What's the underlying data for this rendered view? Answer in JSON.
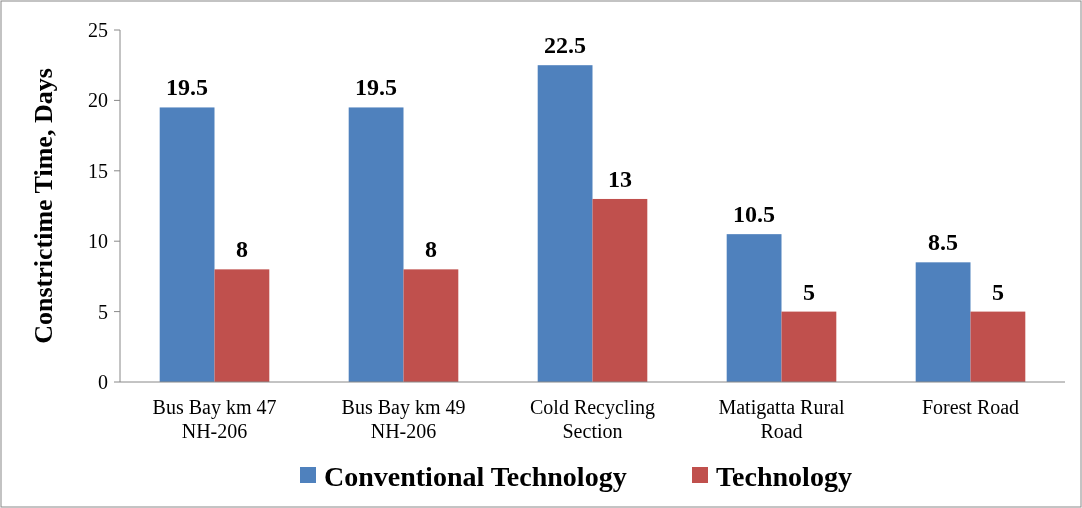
{
  "chart_data": {
    "type": "bar",
    "ylabel": "Constrictime  Time, Days",
    "categories": [
      "Bus Bay km 47 NH-206",
      "Bus Bay km 49 NH-206",
      "Cold Recycling Section",
      "Matigatta Rural Road",
      "Forest Road"
    ],
    "series": [
      {
        "name": "Conventional Technology",
        "color": "#4f81bd",
        "values": [
          19.5,
          19.5,
          22.5,
          10.5,
          8.5
        ]
      },
      {
        "name": "Technology",
        "color": "#c0504d",
        "values": [
          8,
          8,
          13,
          5,
          5
        ]
      }
    ],
    "ylim": [
      0,
      25
    ],
    "yticks": [
      0,
      5,
      10,
      15,
      20,
      25
    ],
    "data_labels": true,
    "legend": "bottom"
  }
}
